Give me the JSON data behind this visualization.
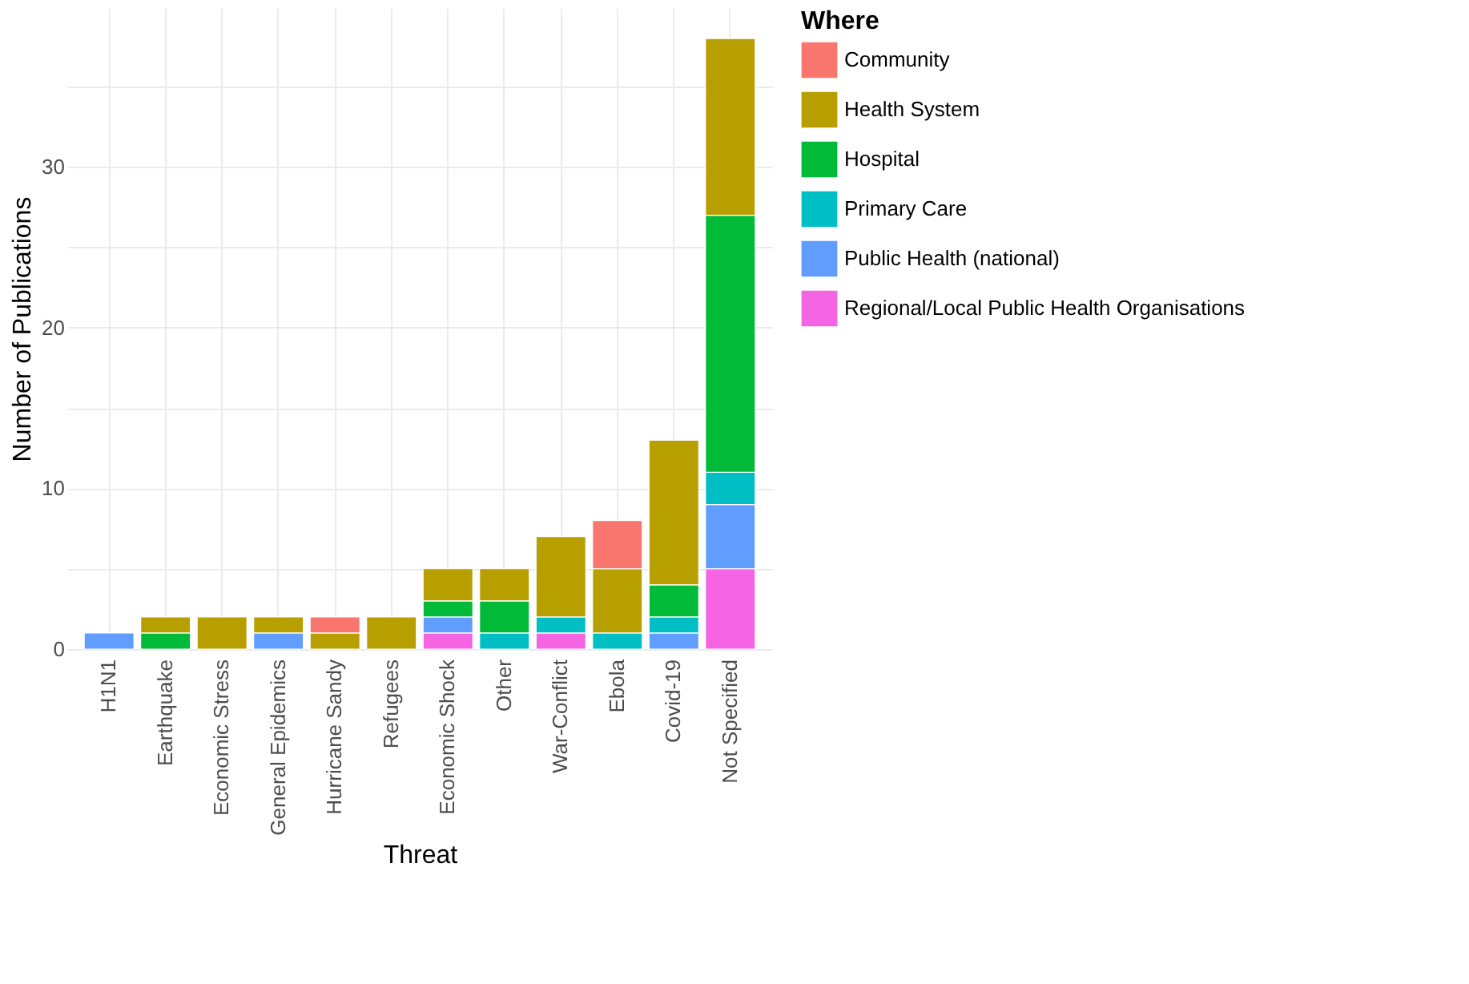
{
  "chart_data": {
    "type": "bar",
    "stacked": true,
    "xlabel": "Threat",
    "ylabel": "Number of Publications",
    "legend_title": "Where",
    "legend": "right",
    "grid": true,
    "categories": [
      "H1N1",
      "Earthquake",
      "Economic Stress",
      "General Epidemics",
      "Hurricane Sandy",
      "Refugees",
      "Economic Shock",
      "Other",
      "War-Conflict",
      "Ebola",
      "Covid-19",
      "Not Specified"
    ],
    "ylim": [
      0,
      39.9
    ],
    "yticks": [
      0,
      {
        "value": 5,
        "label": null
      },
      10,
      {
        "value": 15,
        "label": null
      },
      20,
      {
        "value": 25,
        "label": null
      },
      30,
      {
        "value": 35,
        "label": null
      }
    ],
    "series": [
      {
        "name": "Regional/Local Public Health Organisations",
        "color": "#f564e3",
        "values": [
          null,
          null,
          null,
          null,
          null,
          null,
          1,
          null,
          1,
          null,
          null,
          5
        ]
      },
      {
        "name": "Public Health (national)",
        "color": "#619cff",
        "values": [
          1,
          null,
          null,
          1,
          null,
          null,
          1,
          null,
          null,
          null,
          1,
          4
        ]
      },
      {
        "name": "Primary Care",
        "color": "#00bfc4",
        "values": [
          null,
          null,
          null,
          null,
          null,
          null,
          null,
          1,
          1,
          1,
          1,
          2
        ]
      },
      {
        "name": "Hospital",
        "color": "#00ba38",
        "values": [
          null,
          1,
          null,
          null,
          null,
          null,
          1,
          2,
          null,
          null,
          2,
          16
        ]
      },
      {
        "name": "Health System",
        "color": "#b79f00",
        "values": [
          null,
          1,
          2,
          1,
          1,
          2,
          2,
          2,
          5,
          4,
          9,
          11
        ]
      },
      {
        "name": "Community",
        "color": "#f8766d",
        "values": [
          null,
          null,
          null,
          null,
          1,
          null,
          null,
          null,
          null,
          3,
          null,
          null
        ]
      }
    ]
  }
}
